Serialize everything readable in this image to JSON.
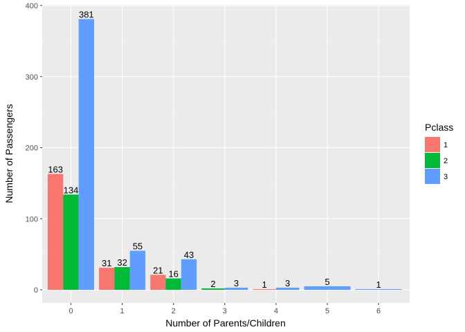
{
  "chart_data": {
    "type": "bar",
    "xlabel": "Number of Parents/Children",
    "ylabel": "Number of Passengers",
    "categories": [
      "0",
      "1",
      "2",
      "3",
      "4",
      "5",
      "6"
    ],
    "ylim": [
      0,
      400
    ],
    "yticks": [
      0,
      100,
      200,
      300,
      400
    ],
    "grid": true,
    "legend": {
      "title": "Pclass",
      "position": "right"
    },
    "series": [
      {
        "name": "1",
        "color": "#F8766D",
        "points": [
          {
            "category": "0",
            "value": 163
          },
          {
            "category": "1",
            "value": 31
          },
          {
            "category": "2",
            "value": 21
          }
        ]
      },
      {
        "name": "2",
        "color": "#00BA38",
        "points": [
          {
            "category": "0",
            "value": 134
          },
          {
            "category": "1",
            "value": 32
          },
          {
            "category": "2",
            "value": 16
          },
          {
            "category": "3",
            "value": 2
          }
        ]
      },
      {
        "name": "3",
        "color": "#619CFF",
        "points": [
          {
            "category": "0",
            "value": 381
          },
          {
            "category": "1",
            "value": 55
          },
          {
            "category": "2",
            "value": 43
          },
          {
            "category": "3",
            "value": 3
          },
          {
            "category": "4",
            "value": 3
          },
          {
            "category": "5",
            "value": 5
          },
          {
            "category": "6",
            "value": 1
          }
        ]
      }
    ],
    "extra_bars": [
      {
        "category": "4",
        "series": "1",
        "value": 1
      }
    ]
  }
}
